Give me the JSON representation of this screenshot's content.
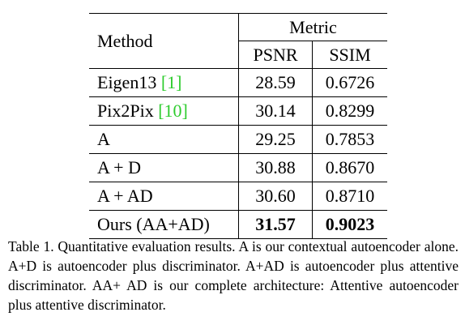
{
  "table": {
    "header": {
      "method_label": "Method",
      "metric_label": "Metric",
      "columns": [
        "PSNR",
        "SSIM"
      ]
    },
    "rows": [
      {
        "method": "Eigen13 ",
        "cite": "[1]",
        "psnr": "28.59",
        "ssim": "0.6726",
        "bold": false
      },
      {
        "method": "Pix2Pix ",
        "cite": "[10]",
        "psnr": "30.14",
        "ssim": "0.8299",
        "bold": false
      },
      {
        "method": "A",
        "cite": "",
        "psnr": "29.25",
        "ssim": "0.7853",
        "bold": false
      },
      {
        "method": "A + D",
        "cite": "",
        "psnr": "30.88",
        "ssim": "0.8670",
        "bold": false
      },
      {
        "method": "A + AD",
        "cite": "",
        "psnr": "30.60",
        "ssim": "0.8710",
        "bold": false
      },
      {
        "method": "Ours (AA+AD)",
        "cite": "",
        "psnr": "31.57",
        "ssim": "0.9023",
        "bold": true
      }
    ]
  },
  "caption": "Table 1. Quantitative evaluation results. A is our contextual autoencoder alone. A+D is autoencoder plus discriminator. A+AD is autoencoder plus attentive discriminator. AA+ AD is our complete architecture: Attentive autoencoder plus attentive discriminator.",
  "colors": {
    "citation": "#2ecc2e",
    "text": "#000000"
  }
}
